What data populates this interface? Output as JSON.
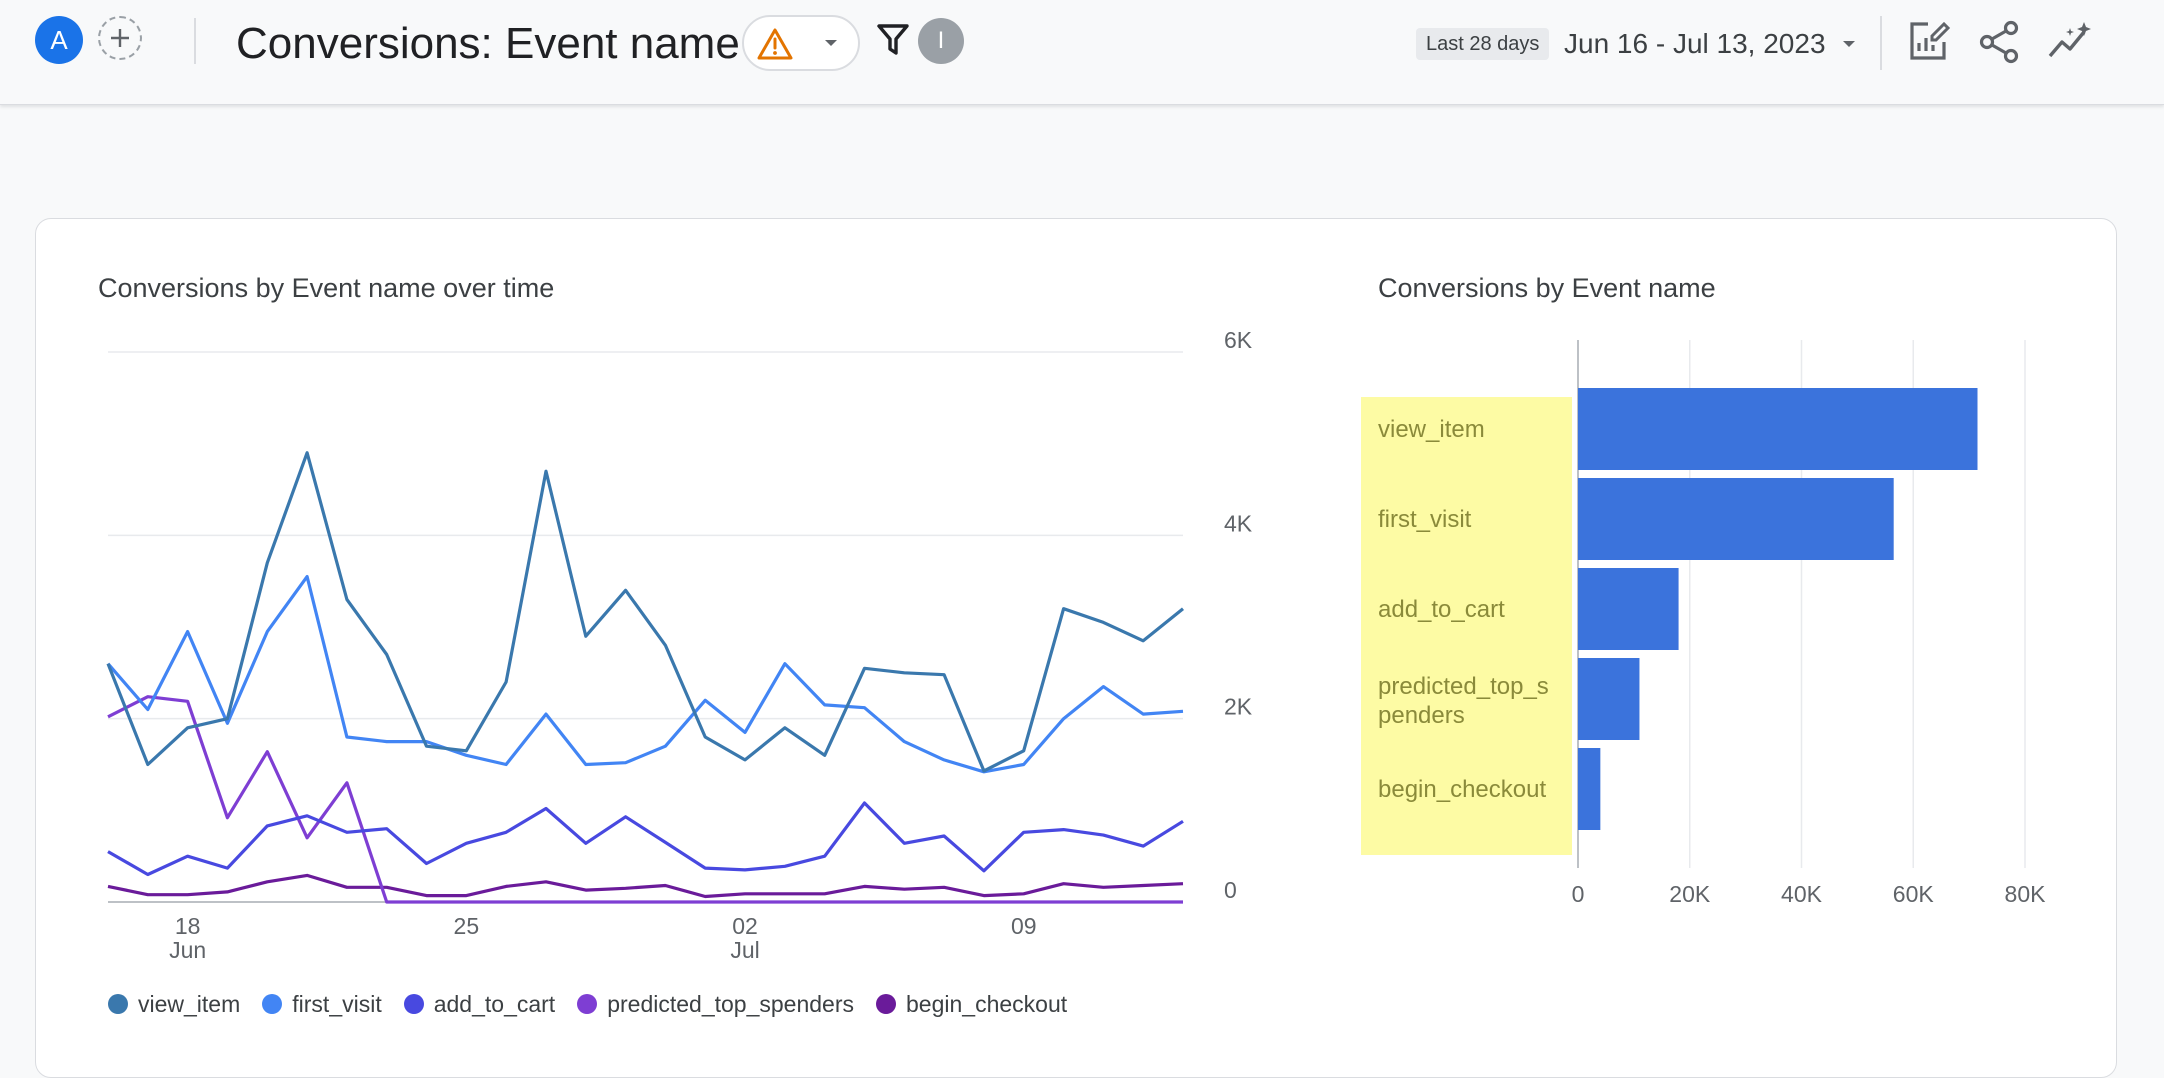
{
  "header": {
    "avatar_letter": "A",
    "title": "Conversions: Event name",
    "info_letter": "I",
    "date_chip": "Last 28 days",
    "date_range": "Jun 16 - Jul 13, 2023",
    "colors": {
      "accent": "#1a73e8",
      "warning": "#e37400"
    },
    "icons": [
      "add-comparison-icon",
      "warning-icon",
      "dropdown-caret-icon",
      "filter-icon",
      "customize-report-icon",
      "share-icon",
      "insights-icon"
    ]
  },
  "line_chart_title": "Conversions by Event name over time",
  "bar_chart_title": "Conversions by Event name",
  "chart_data": [
    {
      "type": "line",
      "title": "Conversions by Event name over time",
      "x": [
        "Jun 16",
        "Jun 17",
        "Jun 18",
        "Jun 19",
        "Jun 20",
        "Jun 21",
        "Jun 22",
        "Jun 23",
        "Jun 24",
        "Jun 25",
        "Jun 26",
        "Jun 27",
        "Jun 28",
        "Jun 29",
        "Jun 30",
        "Jul 1",
        "Jul 2",
        "Jul 3",
        "Jul 4",
        "Jul 5",
        "Jul 6",
        "Jul 7",
        "Jul 8",
        "Jul 9",
        "Jul 10",
        "Jul 11",
        "Jul 12",
        "Jul 13"
      ],
      "x_ticks": [
        {
          "index": 2,
          "label": "18",
          "sublabel": "Jun"
        },
        {
          "index": 9,
          "label": "25",
          "sublabel": ""
        },
        {
          "index": 16,
          "label": "02",
          "sublabel": "Jul"
        },
        {
          "index": 23,
          "label": "09",
          "sublabel": ""
        }
      ],
      "y_ticks": [
        {
          "value": 0,
          "label": "0"
        },
        {
          "value": 2000,
          "label": "2K"
        },
        {
          "value": 4000,
          "label": "4K"
        },
        {
          "value": 6000,
          "label": "6K"
        }
      ],
      "ylim": [
        0,
        6000
      ],
      "grid": true,
      "legend_position": "bottom",
      "series": [
        {
          "name": "view_item",
          "color": "#3a78ad",
          "values": [
            2600,
            1500,
            1900,
            2000,
            3700,
            4900,
            3300,
            2700,
            1700,
            1650,
            2400,
            4700,
            2900,
            3400,
            2800,
            1800,
            1550,
            1900,
            1600,
            2550,
            2500,
            2480,
            1430,
            1650,
            3200,
            3050,
            2850,
            3200
          ]
        },
        {
          "name": "first_visit",
          "color": "#4285f4",
          "values": [
            2600,
            2100,
            2950,
            1950,
            2950,
            3550,
            1800,
            1750,
            1750,
            1600,
            1500,
            2050,
            1500,
            1520,
            1700,
            2200,
            1850,
            2600,
            2150,
            2120,
            1750,
            1550,
            1420,
            1500,
            2000,
            2350,
            2050,
            2080
          ]
        },
        {
          "name": "add_to_cart",
          "color": "#4849e0",
          "values": [
            550,
            300,
            500,
            370,
            830,
            940,
            760,
            800,
            420,
            640,
            760,
            1020,
            640,
            930,
            650,
            370,
            350,
            390,
            500,
            1080,
            640,
            720,
            340,
            760,
            790,
            730,
            610,
            880
          ]
        },
        {
          "name": "predicted_top_spenders",
          "color": "#7e3ed3",
          "values": [
            2020,
            2240,
            2190,
            920,
            1640,
            700,
            1300,
            0,
            0,
            0,
            0,
            0,
            0,
            0,
            0,
            0,
            0,
            0,
            0,
            0,
            0,
            0,
            0,
            0,
            0,
            0,
            0,
            0
          ]
        },
        {
          "name": "begin_checkout",
          "color": "#6a1b9a",
          "values": [
            170,
            80,
            80,
            110,
            220,
            290,
            160,
            160,
            70,
            70,
            170,
            220,
            130,
            150,
            180,
            60,
            90,
            90,
            90,
            170,
            140,
            160,
            70,
            90,
            200,
            160,
            180,
            200
          ]
        }
      ]
    },
    {
      "type": "bar",
      "orientation": "horizontal",
      "title": "Conversions by Event name",
      "categories": [
        "view_item",
        "first_visit",
        "add_to_cart",
        "predicted_top_spenders",
        "begin_checkout"
      ],
      "category_labels": [
        [
          "view_item"
        ],
        [
          "first_visit"
        ],
        [
          "add_to_cart"
        ],
        [
          "predicted_top_s",
          "penders"
        ],
        [
          "begin_checkout"
        ]
      ],
      "values": [
        71500,
        56500,
        18000,
        11000,
        4000
      ],
      "bar_color": "#3b73dc",
      "label_highlight_color": "#fdfba4",
      "x_ticks": [
        {
          "value": 0,
          "label": "0"
        },
        {
          "value": 20000,
          "label": "20K"
        },
        {
          "value": 40000,
          "label": "40K"
        },
        {
          "value": 60000,
          "label": "60K"
        },
        {
          "value": 80000,
          "label": "80K"
        }
      ],
      "xlim": [
        0,
        80000
      ],
      "grid": true
    }
  ]
}
